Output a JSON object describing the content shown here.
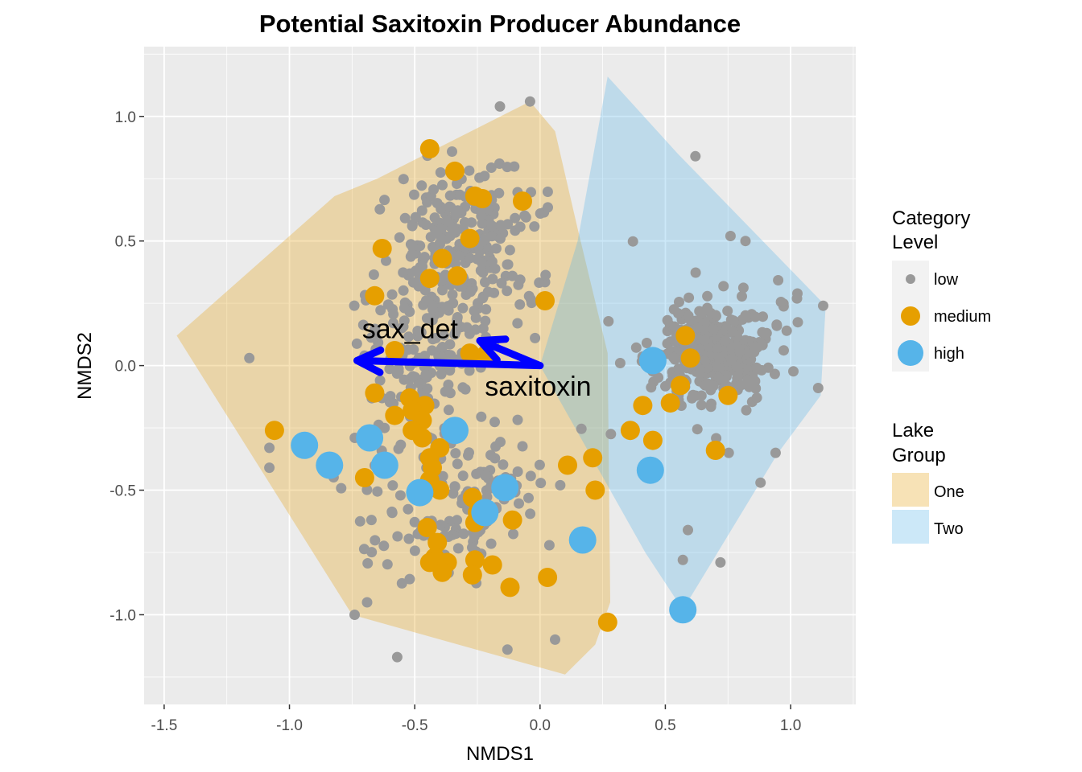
{
  "chart_data": {
    "type": "scatter",
    "title": "Potential Saxitoxin Producer Abundance",
    "xlabel": "NMDS1",
    "ylabel": "NMDS2",
    "xlim": [
      -1.58,
      1.26
    ],
    "ylim": [
      -1.36,
      1.28
    ],
    "xticks": [
      -1.5,
      -1.0,
      -0.5,
      0.0,
      0.5,
      1.0
    ],
    "xtick_labels": [
      "-1.5",
      "-1.0",
      "-0.5",
      "0.0",
      "0.5",
      "1.0"
    ],
    "yticks": [
      -1.0,
      -0.5,
      0.0,
      0.5,
      1.0
    ],
    "ytick_labels": [
      "-1.0",
      "-0.5",
      "0.0",
      "0.5",
      "1.0"
    ],
    "grid": true,
    "colors": {
      "panel": "#ebebeb",
      "grid": "#ffffff",
      "low": "#999999",
      "medium": "#e69f00",
      "high": "#56b4e9",
      "hull_one": "#e6a00c",
      "hull_two": "#56b4e9",
      "vector": "#0000ff"
    },
    "hulls": [
      {
        "group": "One",
        "points": [
          [
            -0.04,
            1.06
          ],
          [
            0.06,
            0.94
          ],
          [
            0.15,
            0.55
          ],
          [
            0.27,
            0.05
          ],
          [
            0.28,
            -0.95
          ],
          [
            0.22,
            -1.12
          ],
          [
            0.1,
            -1.24
          ],
          [
            -0.75,
            -1.0
          ],
          [
            -1.45,
            0.12
          ],
          [
            -0.82,
            0.68
          ],
          [
            -0.65,
            0.75
          ]
        ]
      },
      {
        "group": "Two",
        "points": [
          [
            0.27,
            1.16
          ],
          [
            0.55,
            0.85
          ],
          [
            1.14,
            0.24
          ],
          [
            1.12,
            -0.12
          ],
          [
            0.95,
            -0.35
          ],
          [
            0.57,
            -0.98
          ],
          [
            0.42,
            -0.75
          ],
          [
            0.0,
            0.0
          ],
          [
            0.15,
            0.5
          ]
        ]
      }
    ],
    "vectors": [
      {
        "label": "sax_det",
        "x": -0.73,
        "y": 0.02,
        "label_x": -0.71,
        "label_y": 0.11
      },
      {
        "label": "saxitoxin",
        "x": -0.24,
        "y": 0.1,
        "label_x": -0.22,
        "label_y": -0.12
      }
    ],
    "series": [
      {
        "name": "medium",
        "points": [
          [
            -0.44,
            0.87
          ],
          [
            -0.34,
            0.78
          ],
          [
            -0.26,
            0.68
          ],
          [
            -0.23,
            0.67
          ],
          [
            -0.07,
            0.66
          ],
          [
            -0.28,
            0.51
          ],
          [
            -0.63,
            0.47
          ],
          [
            -0.39,
            0.43
          ],
          [
            -0.33,
            0.36
          ],
          [
            -0.44,
            0.35
          ],
          [
            -0.66,
            0.28
          ],
          [
            0.02,
            0.26
          ],
          [
            -0.58,
            0.06
          ],
          [
            -0.28,
            0.05
          ],
          [
            -0.22,
            0.04
          ],
          [
            -0.66,
            -0.11
          ],
          [
            -0.52,
            -0.13
          ],
          [
            -0.46,
            -0.16
          ],
          [
            -0.51,
            -0.18
          ],
          [
            -0.58,
            -0.2
          ],
          [
            -0.47,
            -0.22
          ],
          [
            -1.06,
            -0.26
          ],
          [
            -0.51,
            -0.26
          ],
          [
            -0.47,
            -0.29
          ],
          [
            -0.4,
            -0.33
          ],
          [
            -0.44,
            -0.37
          ],
          [
            -0.43,
            -0.41
          ],
          [
            -0.44,
            -0.46
          ],
          [
            -0.63,
            -0.41
          ],
          [
            -0.7,
            -0.45
          ],
          [
            -0.4,
            -0.5
          ],
          [
            -0.27,
            -0.53
          ],
          [
            -0.25,
            -0.59
          ],
          [
            -0.26,
            -0.63
          ],
          [
            -0.11,
            -0.62
          ],
          [
            -0.45,
            -0.65
          ],
          [
            -0.41,
            -0.71
          ],
          [
            -0.42,
            -0.77
          ],
          [
            -0.44,
            -0.79
          ],
          [
            -0.37,
            -0.79
          ],
          [
            -0.26,
            -0.78
          ],
          [
            -0.19,
            -0.8
          ],
          [
            -0.39,
            -0.83
          ],
          [
            -0.27,
            -0.84
          ],
          [
            -0.12,
            -0.89
          ],
          [
            0.03,
            -0.85
          ],
          [
            0.21,
            -0.37
          ],
          [
            0.11,
            -0.4
          ],
          [
            0.22,
            -0.5
          ],
          [
            0.27,
            -1.03
          ],
          [
            0.36,
            -0.26
          ],
          [
            0.41,
            -0.16
          ],
          [
            0.45,
            -0.3
          ],
          [
            0.52,
            -0.15
          ],
          [
            0.56,
            -0.08
          ],
          [
            0.7,
            -0.34
          ],
          [
            0.75,
            -0.12
          ],
          [
            0.6,
            0.03
          ],
          [
            0.58,
            0.12
          ]
        ]
      },
      {
        "name": "high",
        "points": [
          [
            -0.94,
            -0.32
          ],
          [
            -0.84,
            -0.4
          ],
          [
            -0.68,
            -0.29
          ],
          [
            -0.62,
            -0.4
          ],
          [
            -0.48,
            -0.51
          ],
          [
            -0.34,
            -0.26
          ],
          [
            -0.22,
            -0.59
          ],
          [
            -0.14,
            -0.49
          ],
          [
            0.17,
            -0.7
          ],
          [
            0.45,
            0.02
          ],
          [
            0.44,
            -0.42
          ],
          [
            0.57,
            -0.98
          ]
        ]
      }
    ]
  },
  "legend": {
    "category_title_line1": "Category",
    "category_title_line2": "Level",
    "category_items": [
      "low",
      "medium",
      "high"
    ],
    "lake_title_line1": "Lake",
    "lake_title_line2": "Group",
    "lake_items": [
      "One",
      "Two"
    ]
  }
}
